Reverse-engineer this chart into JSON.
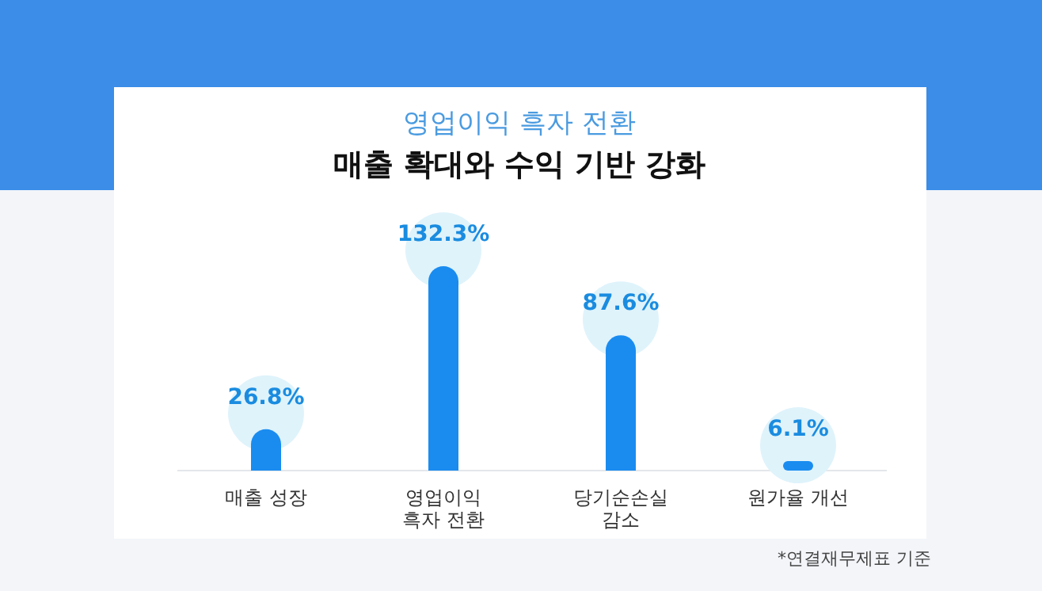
{
  "chart_data": {
    "type": "bar",
    "subtitle": "영업이익 흑자 전환",
    "title": "매출 확대와 수익 기반 강화",
    "categories": [
      "매출 성장",
      "영업이익\n흑자 전환",
      "당기순손실\n감소",
      "원가율 개선"
    ],
    "values": [
      26.8,
      132.3,
      87.6,
      6.1
    ],
    "value_labels": [
      "26.8%",
      "132.3%",
      "87.6%",
      "6.1%"
    ],
    "color": "#1a8cf0",
    "annotations": [
      "*연결재무제표 기준"
    ]
  }
}
